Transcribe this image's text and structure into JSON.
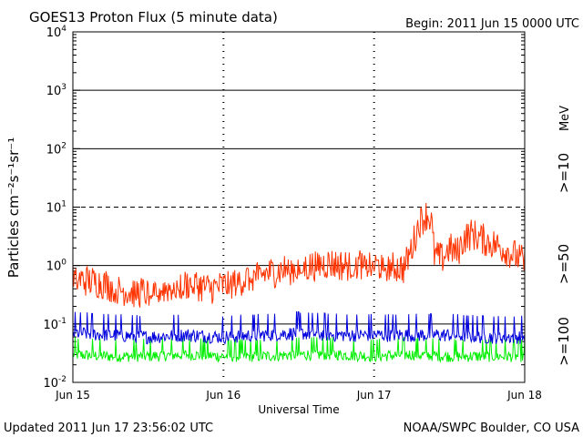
{
  "header": {
    "title": "GOES13 Proton Flux (5 minute data)",
    "begin": "Begin: 2011 Jun 15 0000 UTC"
  },
  "footer": {
    "updated": "Updated 2011 Jun 17 23:56:02 UTC",
    "credit": "NOAA/SWPC Boulder, CO USA"
  },
  "colors": {
    "s10": "#ff3300",
    "s50": "#0000dd",
    "s100": "#00ee00"
  },
  "chart_data": {
    "type": "line",
    "title": "GOES13 Proton Flux (5 minute data)",
    "xlabel": "Universal Time",
    "ylabel": "Particles cm⁻²s⁻¹sr⁻¹",
    "unit": "MeV",
    "y_scale": "log",
    "ylim": [
      0.01,
      10000
    ],
    "xlim": [
      0,
      3
    ],
    "x_ticks": [
      {
        "x": 0,
        "label": "Jun 15"
      },
      {
        "x": 1,
        "label": "Jun 16"
      },
      {
        "x": 2,
        "label": "Jun 17"
      },
      {
        "x": 3,
        "label": "Jun 18"
      }
    ],
    "y_ticks": [
      {
        "exp": -2,
        "base": "10",
        "sup": "-2"
      },
      {
        "exp": -1,
        "base": "10",
        "sup": "-1"
      },
      {
        "exp": 0,
        "base": "10",
        "sup": "0"
      },
      {
        "exp": 1,
        "base": "10",
        "sup": "1"
      },
      {
        "exp": 2,
        "base": "10",
        "sup": "2"
      },
      {
        "exp": 3,
        "base": "10",
        "sup": "3"
      },
      {
        "exp": 4,
        "base": "10",
        "sup": "4"
      }
    ],
    "series": [
      {
        "name": ">=10",
        "key": "s10",
        "x": [
          0,
          0.1,
          0.2,
          0.3,
          0.4,
          0.5,
          0.6,
          0.7,
          0.8,
          0.9,
          1.0,
          1.1,
          1.2,
          1.3,
          1.4,
          1.5,
          1.6,
          1.7,
          1.8,
          1.9,
          2.0,
          2.1,
          2.2,
          2.25,
          2.3,
          2.35,
          2.38,
          2.4,
          2.45,
          2.5,
          2.55,
          2.6,
          2.65,
          2.7,
          2.75,
          2.8,
          2.85,
          2.9,
          2.95,
          3.0
        ],
        "y": [
          0.6,
          0.55,
          0.5,
          0.4,
          0.35,
          0.35,
          0.4,
          0.45,
          0.5,
          0.4,
          0.45,
          0.55,
          0.65,
          0.75,
          0.85,
          0.9,
          1.0,
          1.1,
          1.0,
          1.1,
          1.0,
          1.0,
          0.9,
          2.0,
          5.5,
          7.5,
          6.0,
          1.5,
          1.3,
          2.0,
          1.6,
          3.0,
          3.5,
          3.0,
          2.6,
          2.3,
          2.0,
          1.7,
          1.4,
          1.1
        ]
      },
      {
        "name": ">=50",
        "key": "s50",
        "x": [
          0,
          0.25,
          0.5,
          0.75,
          1.0,
          1.25,
          1.5,
          1.75,
          2.0,
          2.25,
          2.5,
          2.75,
          3.0
        ],
        "y": [
          0.07,
          0.065,
          0.06,
          0.065,
          0.06,
          0.065,
          0.07,
          0.065,
          0.065,
          0.065,
          0.065,
          0.06,
          0.06
        ]
      },
      {
        "name": ">=100",
        "key": "s100",
        "x": [
          0,
          0.25,
          0.5,
          0.75,
          1.0,
          1.25,
          1.5,
          1.75,
          2.0,
          2.25,
          2.5,
          2.75,
          3.0
        ],
        "y": [
          0.03,
          0.028,
          0.028,
          0.03,
          0.028,
          0.028,
          0.03,
          0.03,
          0.028,
          0.03,
          0.028,
          0.028,
          0.028
        ]
      }
    ]
  }
}
